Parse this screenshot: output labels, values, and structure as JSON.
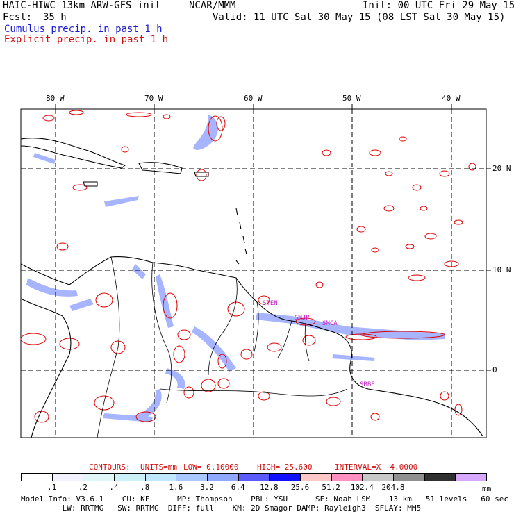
{
  "header": {
    "model_title": "HAIC-HIWC 13km ARW-GFS init",
    "center": "NCAR/MMM",
    "init_time": "Init: 00 UTC Fri 29 May 15",
    "forecast_label": "Fcst:",
    "forecast_hours": "35 h",
    "valid_time": "Valid: 11 UTC Sat 30 May 15 (08 LST Sat 30 May 15)",
    "cumulus_legend": "Cumulus precip. in past 1 h",
    "explicit_legend": "Explicit precip. in past 1 h"
  },
  "map": {
    "lon_labels": [
      "80 W",
      "70 W",
      "60 W",
      "50 W",
      "40 W"
    ],
    "lat_labels": [
      "20 N",
      "10 N",
      "0"
    ],
    "stations": [
      "STEN",
      "SMJP",
      "SMCA",
      "SBBE"
    ],
    "colors": {
      "coast": "#000000",
      "cumulus": "#5566ff",
      "explicit": "#e00000",
      "grid": "#000000"
    }
  },
  "contours": {
    "label": "CONTOURS:",
    "units": "UNITS=mm",
    "low": "LOW= 0.10000",
    "high": "HIGH= 25.600",
    "interval": "INTERVAL=X  4.0000"
  },
  "colorbar": {
    "values": [
      ".1",
      ".2",
      ".4",
      ".8",
      "1.6",
      "3.2",
      "6.4",
      "12.8",
      "25.6",
      "51.2",
      "102.4",
      "204.8"
    ],
    "unit": "mm",
    "colors": [
      "#ffffff",
      "#f2f2ff",
      "#e0f7f7",
      "#ccf0f8",
      "#bfe8ff",
      "#a8c8ff",
      "#8fa8ff",
      "#5a5aff",
      "#1010ff",
      "#ffc8c8",
      "#ff90c0",
      "#c8c8c8",
      "#909090",
      "#303030",
      "#d8a8ff"
    ]
  },
  "model_info": {
    "line1": "Model Info: V3.6.1    CU: KF      MP: Thompson    PBL: YSU      SF: Noah LSM    13 km   51 levels   60 sec",
    "line2": "         LW: RRTMG   SW: RRTMG  DIFF: full    KM: 2D Smagor DAMP: Rayleigh3  SFLAY: MM5"
  }
}
